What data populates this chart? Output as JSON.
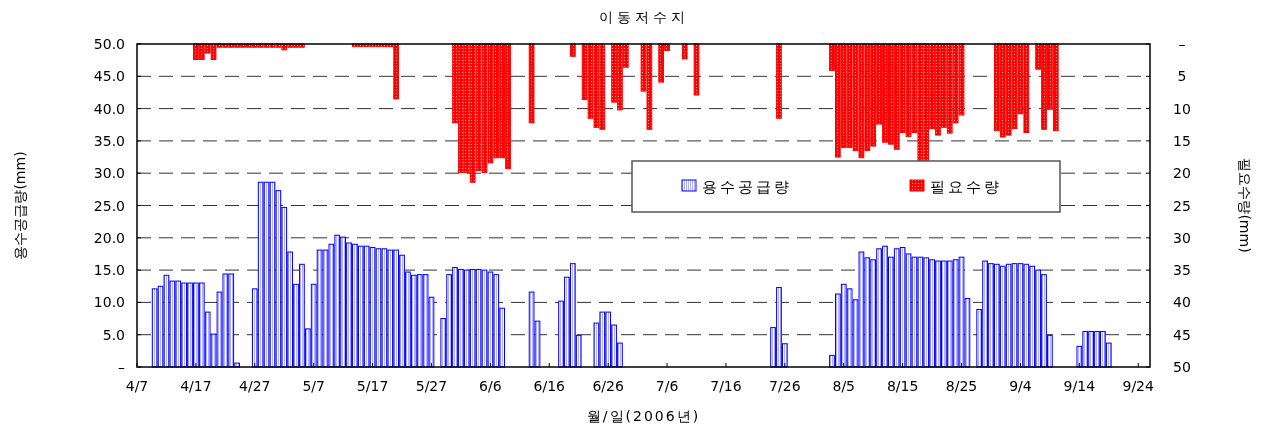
{
  "chart_data": {
    "type": "bar",
    "title": "이동저수지",
    "xlabel": "월/일(2006년)",
    "ylabel": "용수공급량(mm)",
    "y2label": "필요수량(mm)",
    "xlim": [
      "2006-04-07",
      "2006-09-26"
    ],
    "xticks": [
      {
        "value": "2006-04-07",
        "label": "4/7"
      },
      {
        "value": "2006-04-17",
        "label": "4/17"
      },
      {
        "value": "2006-04-27",
        "label": "4/27"
      },
      {
        "value": "2006-05-07",
        "label": "5/7"
      },
      {
        "value": "2006-05-17",
        "label": "5/17"
      },
      {
        "value": "2006-05-27",
        "label": "5/27"
      },
      {
        "value": "2006-06-06",
        "label": "6/6"
      },
      {
        "value": "2006-06-16",
        "label": "6/16"
      },
      {
        "value": "2006-06-26",
        "label": "6/26"
      },
      {
        "value": "2006-07-06",
        "label": "7/6"
      },
      {
        "value": "2006-07-16",
        "label": "7/16"
      },
      {
        "value": "2006-07-26",
        "label": "7/26"
      },
      {
        "value": "2006-08-05",
        "label": "8/5"
      },
      {
        "value": "2006-08-15",
        "label": "8/15"
      },
      {
        "value": "2006-08-25",
        "label": "8/25"
      },
      {
        "value": "2006-09-04",
        "label": "9/4"
      },
      {
        "value": "2006-09-14",
        "label": "9/14"
      },
      {
        "value": "2006-09-24",
        "label": "9/24"
      }
    ],
    "ylim": [
      0,
      50
    ],
    "yticks": [
      {
        "value": 0,
        "label": "–"
      },
      {
        "value": 5,
        "label": "5.0"
      },
      {
        "value": 10,
        "label": "10.0"
      },
      {
        "value": 15,
        "label": "15.0"
      },
      {
        "value": 20,
        "label": "20.0"
      },
      {
        "value": 25,
        "label": "25.0"
      },
      {
        "value": 30,
        "label": "30.0"
      },
      {
        "value": 35,
        "label": "35.0"
      },
      {
        "value": 40,
        "label": "40.0"
      },
      {
        "value": 45,
        "label": "45.0"
      },
      {
        "value": 50,
        "label": "50.0"
      }
    ],
    "y2lim": [
      50,
      0
    ],
    "y2ticks": [
      {
        "value": 0,
        "label": "–"
      },
      5,
      10,
      15,
      20,
      25,
      30,
      35,
      40,
      45,
      50
    ],
    "grid": "y",
    "legend": "right",
    "series": [
      {
        "name": "용수공급량",
        "color": "#0000ff",
        "x": [
          "2006-04-10",
          "2006-04-11",
          "2006-04-12",
          "2006-04-13",
          "2006-04-14",
          "2006-04-15",
          "2006-04-16",
          "2006-04-17",
          "2006-04-18",
          "2006-04-19",
          "2006-04-20",
          "2006-04-21",
          "2006-04-22",
          "2006-04-23",
          "2006-04-24",
          "2006-04-27",
          "2006-04-28",
          "2006-04-29",
          "2006-04-30",
          "2006-05-01",
          "2006-05-02",
          "2006-05-03",
          "2006-05-04",
          "2006-05-05",
          "2006-05-06",
          "2006-05-07",
          "2006-05-08",
          "2006-05-09",
          "2006-05-10",
          "2006-05-11",
          "2006-05-12",
          "2006-05-13",
          "2006-05-14",
          "2006-05-15",
          "2006-05-16",
          "2006-05-17",
          "2006-05-18",
          "2006-05-19",
          "2006-05-20",
          "2006-05-21",
          "2006-05-22",
          "2006-05-23",
          "2006-05-24",
          "2006-05-25",
          "2006-05-26",
          "2006-05-27",
          "2006-05-29",
          "2006-05-30",
          "2006-05-31",
          "2006-06-01",
          "2006-06-02",
          "2006-06-03",
          "2006-06-04",
          "2006-06-05",
          "2006-06-06",
          "2006-06-07",
          "2006-06-08",
          "2006-06-13",
          "2006-06-14",
          "2006-06-18",
          "2006-06-19",
          "2006-06-20",
          "2006-06-21",
          "2006-06-24",
          "2006-06-25",
          "2006-06-26",
          "2006-06-27",
          "2006-06-28",
          "2006-07-24",
          "2006-07-25",
          "2006-07-26",
          "2006-08-03",
          "2006-08-04",
          "2006-08-05",
          "2006-08-06",
          "2006-08-07",
          "2006-08-08",
          "2006-08-09",
          "2006-08-10",
          "2006-08-11",
          "2006-08-12",
          "2006-08-13",
          "2006-08-14",
          "2006-08-15",
          "2006-08-16",
          "2006-08-17",
          "2006-08-18",
          "2006-08-19",
          "2006-08-20",
          "2006-08-21",
          "2006-08-22",
          "2006-08-23",
          "2006-08-24",
          "2006-08-25",
          "2006-08-26",
          "2006-08-28",
          "2006-08-29",
          "2006-08-30",
          "2006-08-31",
          "2006-09-01",
          "2006-09-02",
          "2006-09-03",
          "2006-09-04",
          "2006-09-05",
          "2006-09-06",
          "2006-09-07",
          "2006-09-08",
          "2006-09-09",
          "2006-09-14",
          "2006-09-15",
          "2006-09-16",
          "2006-09-17",
          "2006-09-18",
          "2006-09-19"
        ],
        "values": [
          12.1,
          12.5,
          14.2,
          13.3,
          13.3,
          13.0,
          13.0,
          13.0,
          13.0,
          8.5,
          5.1,
          11.6,
          14.4,
          14.4,
          0.6,
          12.1,
          28.6,
          28.6,
          28.6,
          27.3,
          24.7,
          17.8,
          12.8,
          15.9,
          5.9,
          12.8,
          18.1,
          18.1,
          19.0,
          20.4,
          20.1,
          19.2,
          19.0,
          18.7,
          18.7,
          18.5,
          18.3,
          18.3,
          18.1,
          18.1,
          17.3,
          14.7,
          14.2,
          14.3,
          14.3,
          10.8,
          7.5,
          14.3,
          15.4,
          15.1,
          15.0,
          15.1,
          15.1,
          15.0,
          14.7,
          14.3,
          9.1,
          11.6,
          7.1,
          10.2,
          13.9,
          16.0,
          4.9,
          6.8,
          8.5,
          8.5,
          6.5,
          3.7,
          6.1,
          12.3,
          3.6,
          1.8,
          11.3,
          12.8,
          12.1,
          10.4,
          17.8,
          16.9,
          16.6,
          18.3,
          18.7,
          17.0,
          18.3,
          18.5,
          17.5,
          17.0,
          17.0,
          16.9,
          16.6,
          16.4,
          16.4,
          16.4,
          16.6,
          17.0,
          10.6,
          8.9,
          16.4,
          16.0,
          15.9,
          15.6,
          15.9,
          16.0,
          16.0,
          15.9,
          15.6,
          15.0,
          14.3,
          4.9,
          3.2,
          5.5,
          5.5,
          5.5,
          5.5,
          3.7
        ]
      },
      {
        "name": "필요수량",
        "color": "#ff0000",
        "axis": "y2",
        "x": [
          "2006-04-17",
          "2006-04-18",
          "2006-04-19",
          "2006-04-20",
          "2006-04-21",
          "2006-04-22",
          "2006-04-23",
          "2006-04-24",
          "2006-04-25",
          "2006-04-26",
          "2006-04-27",
          "2006-04-28",
          "2006-04-29",
          "2006-04-30",
          "2006-05-01",
          "2006-05-02",
          "2006-05-03",
          "2006-05-04",
          "2006-05-05",
          "2006-05-14",
          "2006-05-15",
          "2006-05-16",
          "2006-05-17",
          "2006-05-18",
          "2006-05-19",
          "2006-05-20",
          "2006-05-21",
          "2006-05-31",
          "2006-06-01",
          "2006-06-02",
          "2006-06-03",
          "2006-06-04",
          "2006-06-05",
          "2006-06-06",
          "2006-06-07",
          "2006-06-08",
          "2006-06-09",
          "2006-06-13",
          "2006-06-20",
          "2006-06-22",
          "2006-06-23",
          "2006-06-24",
          "2006-06-25",
          "2006-06-27",
          "2006-06-28",
          "2006-06-29",
          "2006-07-02",
          "2006-07-03",
          "2006-07-05",
          "2006-07-06",
          "2006-07-09",
          "2006-07-11",
          "2006-07-25",
          "2006-08-03",
          "2006-08-04",
          "2006-08-05",
          "2006-08-06",
          "2006-08-07",
          "2006-08-08",
          "2006-08-09",
          "2006-08-10",
          "2006-08-11",
          "2006-08-12",
          "2006-08-13",
          "2006-08-14",
          "2006-08-15",
          "2006-08-16",
          "2006-08-17",
          "2006-08-18",
          "2006-08-19",
          "2006-08-20",
          "2006-08-21",
          "2006-08-22",
          "2006-08-23",
          "2006-08-24",
          "2006-08-25",
          "2006-08-31",
          "2006-09-01",
          "2006-09-02",
          "2006-09-03",
          "2006-09-04",
          "2006-09-05",
          "2006-09-07",
          "2006-09-08",
          "2006-09-09",
          "2006-09-10"
        ],
        "values": [
          2.4,
          2.4,
          1.4,
          2.4,
          0.5,
          0.5,
          0.5,
          0.5,
          0.5,
          0.5,
          0.5,
          0.5,
          0.5,
          0.5,
          0.5,
          0.9,
          0.5,
          0.5,
          0.5,
          0.4,
          0.4,
          0.4,
          0.4,
          0.4,
          0.4,
          0.4,
          8.5,
          12.2,
          19.9,
          19.9,
          21.4,
          19.6,
          19.9,
          18.4,
          17.6,
          17.6,
          19.3,
          12.2,
          1.9,
          8.6,
          11.5,
          12.9,
          13.2,
          9.0,
          10.2,
          3.6,
          7.3,
          13.2,
          5.9,
          1.0,
          2.3,
          7.9,
          11.5,
          4.1,
          17.5,
          16.0,
          16.0,
          16.5,
          17.6,
          16.5,
          15.8,
          12.4,
          15.2,
          15.5,
          16.3,
          13.7,
          14.3,
          13.7,
          18.0,
          18.0,
          13.1,
          14.1,
          12.9,
          13.8,
          12.2,
          11.0,
          13.4,
          14.4,
          14.1,
          13.1,
          10.8,
          13.7,
          3.9,
          13.2,
          10.1,
          13.4
        ]
      }
    ]
  }
}
